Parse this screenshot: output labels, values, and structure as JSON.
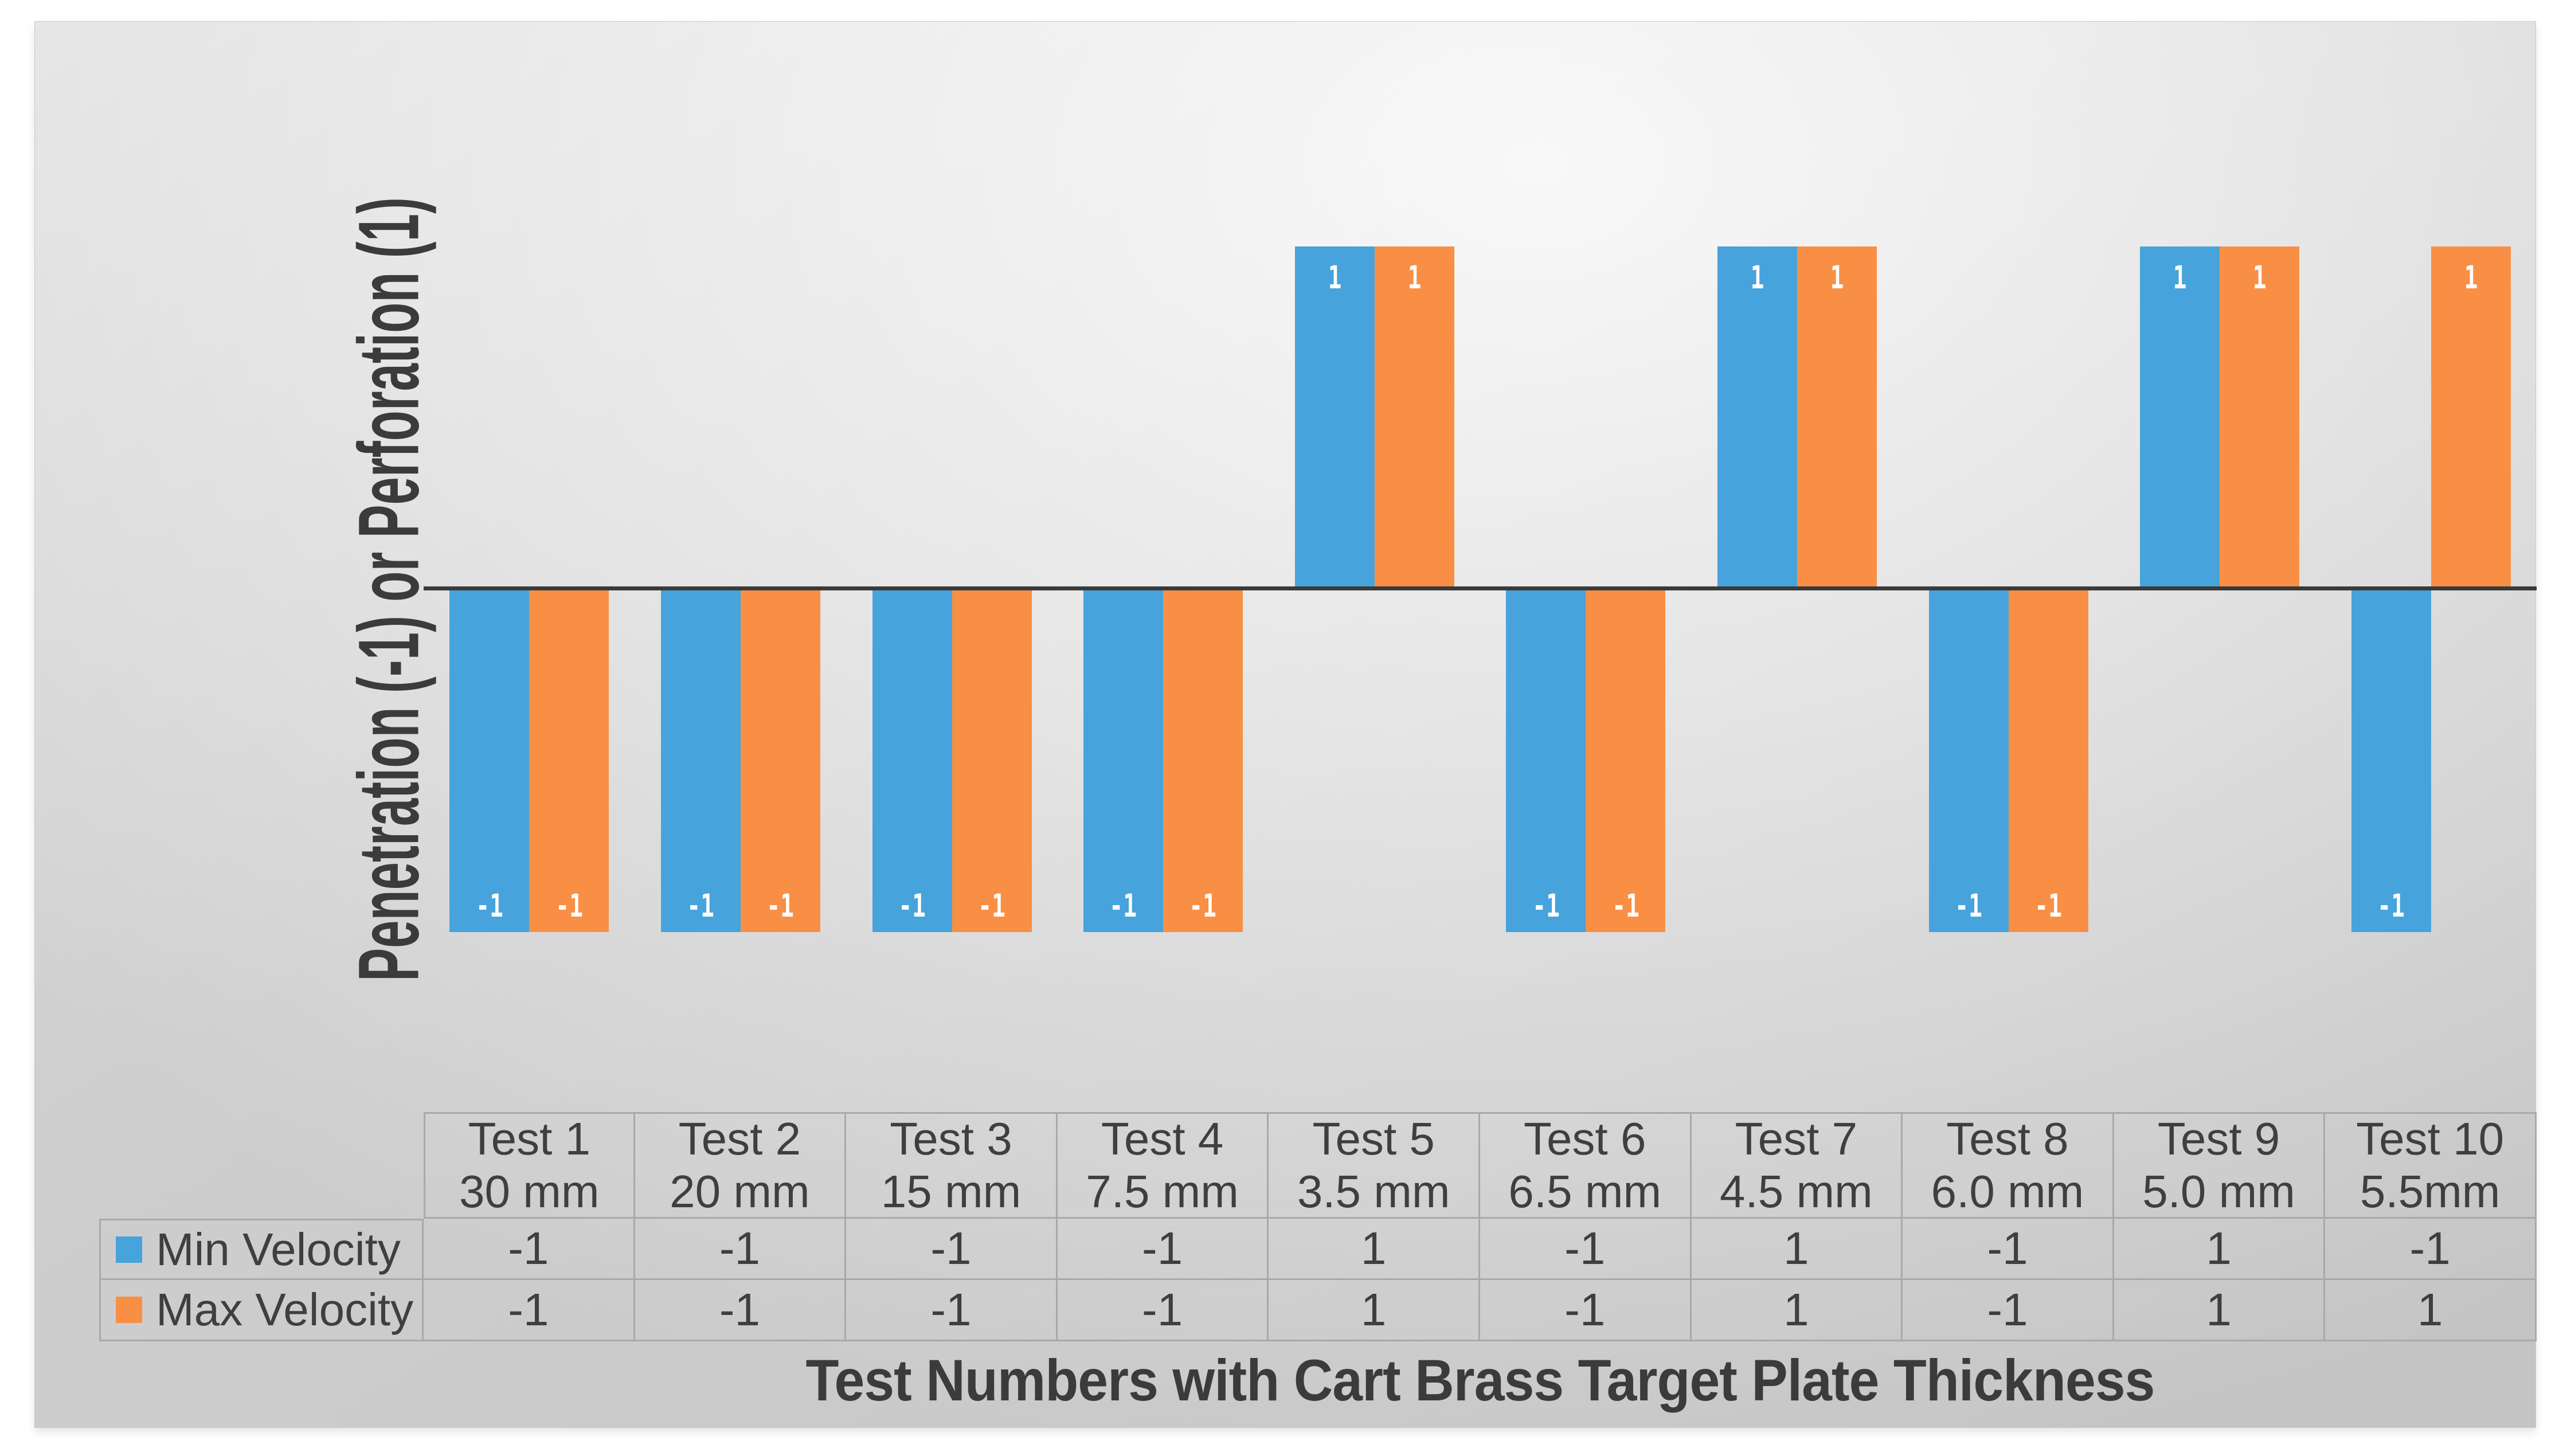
{
  "colors": {
    "axis_line": "#3a3a3a",
    "text": "#3f3f3f",
    "table_border": "#a9a9a9",
    "panel_background": "#e3e3e3",
    "bar_label_text": "#ffffff"
  },
  "chart_data": {
    "type": "bar",
    "title": "",
    "xlabel": "Test Numbers with Cart Brass Target Plate Thickness",
    "ylabel": "Penetration (-1) or Perforation (1)",
    "categories": [
      "Test 1",
      "Test 2",
      "Test 3",
      "Test 4",
      "Test 5",
      "Test 6",
      "Test 7",
      "Test 8",
      "Test 9",
      "Test 10"
    ],
    "category_sublabels": [
      "30 mm",
      "20 mm",
      "15 mm",
      "7.5 mm",
      "3.5 mm",
      "6.5 mm",
      "4.5 mm",
      "6.0 mm",
      "5.0 mm",
      "5.5mm"
    ],
    "series": [
      {
        "name": "Min Velocity",
        "color": "#47a3db",
        "values": [
          -1,
          -1,
          -1,
          -1,
          1,
          -1,
          1,
          -1,
          1,
          -1
        ]
      },
      {
        "name": "Max Velocity",
        "color": "#f98f45",
        "values": [
          -1,
          -1,
          -1,
          -1,
          1,
          -1,
          1,
          -1,
          1,
          1
        ]
      }
    ],
    "ylim": [
      -1.5,
      1.5
    ],
    "grid": false,
    "data_labels": true,
    "legend_position": "table-left"
  }
}
